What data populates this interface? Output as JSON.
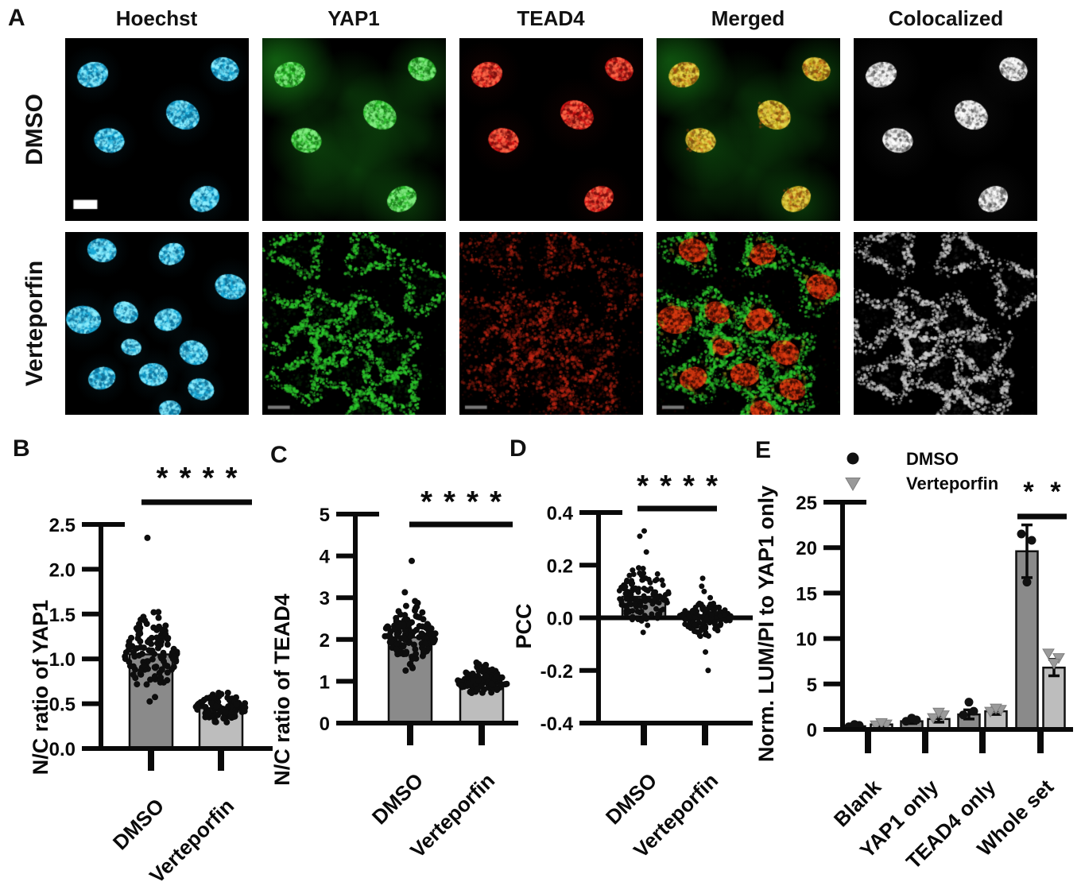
{
  "panels": {
    "a": "A",
    "b": "B",
    "c": "C",
    "d": "D",
    "e": "E"
  },
  "panel_a": {
    "column_titles": [
      "Hoechst",
      "YAP1",
      "TEAD4",
      "Merged",
      "Colocalized"
    ],
    "row_labels": [
      "DMSO",
      "Verteporfin"
    ],
    "channel_colors": {
      "hoechst": "#17a8d6",
      "yap1": "#2dbe2d",
      "tead4": "#d41414",
      "merged_nuclei_dmso": "#c0a81e",
      "merged_nuclei_verteporfin": "#8b1a06",
      "colocalized": "#d6d6d6"
    },
    "scale_bar_present": true
  },
  "chart_data": [
    {
      "panel": "B",
      "type": "bar",
      "ylabel": "N/C ratio of YAP1",
      "categories": [
        "DMSO",
        "Verteporfin"
      ],
      "values": [
        1.05,
        0.45
      ],
      "bar_colors": [
        "#8a8a8a",
        "#bdbdbd"
      ],
      "ylim": [
        0,
        2.5
      ],
      "yticks": [
        0,
        0.5,
        1,
        1.5,
        2,
        2.5
      ],
      "ytick_labels": [
        "0.0",
        "0.5",
        "1.0",
        "1.5",
        "2.0",
        "2.5"
      ],
      "significance": "****",
      "scatter": [
        {
          "mean": 1.05,
          "sd": 0.22,
          "min": 0.52,
          "max": 1.62,
          "n": 120,
          "outliers": [
            2.35
          ]
        },
        {
          "mean": 0.46,
          "sd": 0.08,
          "min": 0.29,
          "max": 0.65,
          "n": 100,
          "outliers": []
        }
      ]
    },
    {
      "panel": "C",
      "type": "bar",
      "ylabel": "N/C ratio of TEAD4",
      "categories": [
        "DMSO",
        "Verteporfin"
      ],
      "values": [
        2.05,
        0.97
      ],
      "bar_colors": [
        "#8a8a8a",
        "#bdbdbd"
      ],
      "ylim": [
        0,
        5
      ],
      "yticks": [
        0,
        1,
        2,
        3,
        4,
        5
      ],
      "ytick_labels": [
        "0",
        "1",
        "2",
        "3",
        "4",
        "5"
      ],
      "significance": "****",
      "scatter": [
        {
          "mean": 2.1,
          "sd": 0.33,
          "min": 1.25,
          "max": 3.2,
          "n": 130,
          "outliers": [
            3.88
          ]
        },
        {
          "mean": 1.0,
          "sd": 0.16,
          "min": 0.65,
          "max": 1.55,
          "n": 110,
          "outliers": []
        }
      ]
    },
    {
      "panel": "D",
      "type": "bar",
      "ylabel": "PCC",
      "categories": [
        "DMSO",
        "Verteporfin"
      ],
      "values": [
        0.08,
        0.01
      ],
      "bar_colors": [
        "#8a8a8a",
        "#bdbdbd"
      ],
      "ylim": [
        -0.4,
        0.4
      ],
      "yticks": [
        -0.4,
        -0.2,
        0,
        0.2,
        0.4
      ],
      "ytick_labels": [
        "-0.4",
        "-0.2",
        "0.0",
        "0.2",
        "0.4"
      ],
      "zero_line": true,
      "significance": "****",
      "scatter": [
        {
          "mean": 0.08,
          "sd": 0.055,
          "min": -0.06,
          "max": 0.22,
          "n": 130,
          "outliers": [
            0.31,
            0.33,
            0.25
          ]
        },
        {
          "mean": 0.0,
          "sd": 0.032,
          "min": -0.09,
          "max": 0.09,
          "n": 130,
          "outliers": [
            0.15,
            0.12,
            0.1,
            -0.13,
            -0.2
          ]
        }
      ]
    },
    {
      "panel": "E",
      "type": "grouped-bar",
      "ylabel": "Norm. LUM/PI to YAP1 only",
      "categories": [
        "Blank",
        "YAP1 only",
        "TEAD4 only",
        "Whole set"
      ],
      "ylim": [
        0,
        25
      ],
      "yticks": [
        0,
        5,
        10,
        15,
        20,
        25
      ],
      "ytick_labels": [
        "0",
        "5",
        "10",
        "15",
        "20",
        "25"
      ],
      "significance": "* *",
      "legend_position": "top",
      "series": [
        {
          "name": "DMSO",
          "marker": "circle",
          "marker_color": "#111111",
          "bar_color": "#8a8a8a",
          "values": [
            0.35,
            0.9,
            1.65,
            19.6
          ],
          "errors": [
            0.15,
            0.25,
            0.5,
            2.9
          ],
          "points": [
            [
              0.3,
              0.45,
              0.55
            ],
            [
              0.9,
              1.05,
              1.25
            ],
            [
              1.6,
              2.0,
              3.0
            ],
            [
              21.5,
              20.8,
              16.2
            ]
          ]
        },
        {
          "name": "Verteporfin",
          "marker": "triangle-down",
          "marker_color": "#9a9a9a",
          "bar_color": "#bdbdbd",
          "values": [
            0.55,
            1.15,
            2.0,
            6.8
          ],
          "errors": [
            0.2,
            0.35,
            0.35,
            0.9
          ],
          "points": [
            [
              0.5,
              0.6,
              0.75
            ],
            [
              1.3,
              1.6,
              1.9
            ],
            [
              2.0,
              2.2,
              2.35
            ],
            [
              8.4,
              7.9,
              7.3
            ]
          ]
        }
      ]
    }
  ]
}
